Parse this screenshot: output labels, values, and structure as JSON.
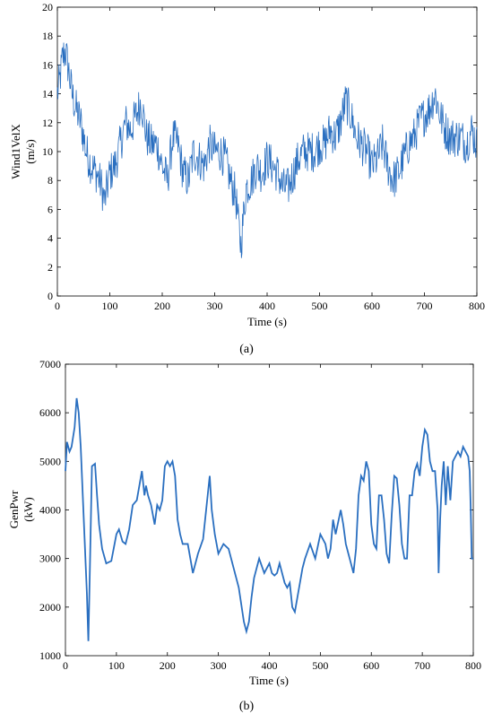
{
  "panel_captions": [
    "(a)",
    "(b)"
  ],
  "chart_data": [
    {
      "type": "line",
      "title": "",
      "xlabel": "Time (s)",
      "ylabel_lines": [
        "Wind1VelX",
        "(m/s)"
      ],
      "xlim": [
        0,
        800
      ],
      "ylim": [
        0,
        20
      ],
      "xticks": [
        0,
        100,
        200,
        300,
        400,
        500,
        600,
        700,
        800
      ],
      "yticks": [
        0,
        2,
        4,
        6,
        8,
        10,
        12,
        14,
        16,
        18,
        20
      ],
      "grid": false,
      "color": "#2a6fc0",
      "noise_amplitude": 0.9,
      "series": [
        {
          "x": [
            0,
            5,
            10,
            15,
            20,
            28,
            35,
            45,
            55,
            65,
            75,
            85,
            90,
            100,
            110,
            120,
            130,
            140,
            150,
            160,
            170,
            180,
            190,
            200,
            210,
            220,
            230,
            240,
            250,
            260,
            270,
            280,
            290,
            300,
            310,
            320,
            330,
            340,
            345,
            350,
            355,
            360,
            370,
            380,
            390,
            400,
            410,
            420,
            430,
            440,
            450,
            460,
            470,
            480,
            490,
            500,
            510,
            520,
            530,
            540,
            550,
            560,
            570,
            580,
            590,
            600,
            610,
            620,
            630,
            640,
            650,
            660,
            670,
            680,
            690,
            700,
            710,
            720,
            730,
            740,
            750,
            760,
            770,
            780,
            790,
            800
          ],
          "y": [
            14,
            15,
            16.5,
            17,
            16,
            14,
            13,
            12,
            10,
            9,
            8.5,
            7.5,
            6.5,
            8.5,
            9,
            10.5,
            12,
            11.5,
            12.5,
            13.5,
            11,
            10.5,
            10.5,
            9,
            8,
            11,
            10.5,
            8.5,
            8,
            10,
            9.5,
            9,
            10.5,
            10,
            10,
            9.5,
            8,
            7,
            5,
            3.5,
            5.5,
            7.5,
            8,
            9,
            8.5,
            9.5,
            9,
            8.5,
            7.5,
            7.5,
            8.5,
            9.5,
            10,
            10,
            10,
            10.5,
            10.5,
            11.5,
            11,
            12,
            13.5,
            12.5,
            11,
            10.5,
            10,
            9,
            9.5,
            10.5,
            9,
            8,
            8.5,
            9.5,
            10.5,
            11,
            12,
            12.5,
            13,
            14,
            12.5,
            11.5,
            11,
            11,
            11,
            10.5,
            11.5,
            10.5
          ]
        }
      ]
    },
    {
      "type": "line",
      "title": "",
      "xlabel": "Time (s)",
      "ylabel_lines": [
        "GenPwr",
        "(kW)"
      ],
      "xlim": [
        0,
        800
      ],
      "ylim": [
        1000,
        7000
      ],
      "xticks": [
        0,
        100,
        200,
        300,
        400,
        500,
        600,
        700,
        800
      ],
      "yticks": [
        1000,
        2000,
        3000,
        4000,
        5000,
        6000,
        7000
      ],
      "grid": false,
      "color": "#2a6fc0",
      "series": [
        {
          "x": [
            0,
            3,
            8,
            12,
            18,
            22,
            26,
            30,
            36,
            42,
            45,
            48,
            52,
            58,
            62,
            66,
            72,
            80,
            90,
            100,
            105,
            112,
            118,
            125,
            132,
            140,
            145,
            150,
            155,
            158,
            162,
            168,
            175,
            180,
            185,
            190,
            195,
            200,
            205,
            210,
            215,
            220,
            225,
            230,
            240,
            250,
            260,
            270,
            278,
            283,
            287,
            293,
            300,
            310,
            320,
            330,
            340,
            350,
            355,
            360,
            365,
            370,
            375,
            380,
            390,
            400,
            405,
            410,
            415,
            420,
            430,
            435,
            440,
            445,
            450,
            455,
            460,
            465,
            470,
            480,
            490,
            500,
            510,
            515,
            520,
            525,
            530,
            540,
            545,
            550,
            555,
            560,
            565,
            570,
            575,
            580,
            585,
            590,
            595,
            600,
            605,
            610,
            615,
            620,
            625,
            630,
            635,
            640,
            645,
            650,
            655,
            660,
            665,
            670,
            675,
            680,
            685,
            690,
            695,
            700,
            705,
            710,
            715,
            720,
            725,
            730,
            732,
            735,
            738,
            742,
            746,
            750,
            755,
            760,
            765,
            770,
            775,
            780,
            785,
            790,
            793,
            795,
            797,
            800
          ],
          "y": [
            4800,
            5400,
            5200,
            5300,
            5700,
            6300,
            6000,
            5300,
            3800,
            2300,
            1300,
            2800,
            4900,
            4950,
            4300,
            3700,
            3200,
            2900,
            2950,
            3500,
            3600,
            3350,
            3300,
            3600,
            4100,
            4200,
            4500,
            4800,
            4300,
            4500,
            4300,
            4100,
            3700,
            4100,
            4000,
            4200,
            4900,
            5000,
            4900,
            5000,
            4700,
            3800,
            3500,
            3300,
            3300,
            2700,
            3100,
            3400,
            4200,
            4700,
            4000,
            3500,
            3100,
            3300,
            3200,
            2800,
            2400,
            1700,
            1500,
            1700,
            2200,
            2600,
            2800,
            3000,
            2700,
            2900,
            2700,
            2650,
            2700,
            2900,
            2500,
            2400,
            2500,
            2000,
            1900,
            2200,
            2500,
            2800,
            3000,
            3300,
            3000,
            3500,
            3300,
            3000,
            3200,
            3800,
            3500,
            4000,
            3700,
            3300,
            3100,
            2900,
            2700,
            3200,
            4300,
            4700,
            4600,
            5000,
            4800,
            3700,
            3300,
            3200,
            4300,
            4300,
            3800,
            3100,
            2900,
            3900,
            4700,
            4650,
            4100,
            3300,
            3000,
            3000,
            4300,
            4300,
            4800,
            4950,
            4700,
            5300,
            5650,
            5550,
            5000,
            4800,
            4800,
            4000,
            2700,
            3800,
            4500,
            5000,
            4100,
            4900,
            4200,
            5000,
            5100,
            5200,
            5100,
            5300,
            5200,
            5100,
            4800,
            4000,
            3000,
            3000
          ]
        }
      ]
    }
  ]
}
